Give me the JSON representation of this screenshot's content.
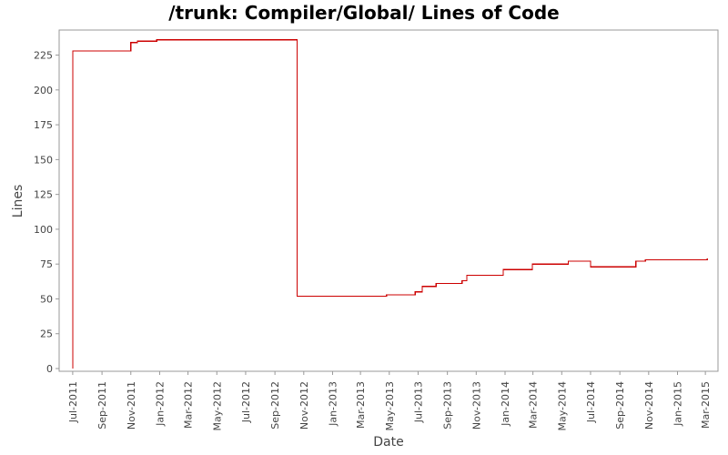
{
  "chart_data": {
    "type": "line",
    "step": true,
    "title": "/trunk: Compiler/Global/ Lines of Code",
    "xlabel": "Date",
    "ylabel": "Lines",
    "xlim": [
      "2011-06-10",
      "2015-03-20"
    ],
    "ylim": [
      0,
      243
    ],
    "yticks": [
      0,
      25,
      50,
      75,
      100,
      125,
      150,
      175,
      200,
      225
    ],
    "xticks": [
      {
        "label": "Jul-2011",
        "date": "2011-07-01"
      },
      {
        "label": "Sep-2011",
        "date": "2011-09-01"
      },
      {
        "label": "Nov-2011",
        "date": "2011-11-01"
      },
      {
        "label": "Jan-2012",
        "date": "2012-01-01"
      },
      {
        "label": "Mar-2012",
        "date": "2012-03-01"
      },
      {
        "label": "May-2012",
        "date": "2012-05-01"
      },
      {
        "label": "Jul-2012",
        "date": "2012-07-01"
      },
      {
        "label": "Sep-2012",
        "date": "2012-09-01"
      },
      {
        "label": "Nov-2012",
        "date": "2012-11-01"
      },
      {
        "label": "Jan-2013",
        "date": "2013-01-01"
      },
      {
        "label": "Mar-2013",
        "date": "2013-03-01"
      },
      {
        "label": "May-2013",
        "date": "2013-05-01"
      },
      {
        "label": "Jul-2013",
        "date": "2013-07-01"
      },
      {
        "label": "Sep-2013",
        "date": "2013-09-01"
      },
      {
        "label": "Nov-2013",
        "date": "2013-11-01"
      },
      {
        "label": "Jan-2014",
        "date": "2014-01-01"
      },
      {
        "label": "Mar-2014",
        "date": "2014-03-01"
      },
      {
        "label": "May-2014",
        "date": "2014-05-01"
      },
      {
        "label": "Jul-2014",
        "date": "2014-07-01"
      },
      {
        "label": "Sep-2014",
        "date": "2014-09-01"
      },
      {
        "label": "Nov-2014",
        "date": "2014-11-01"
      },
      {
        "label": "Jan-2015",
        "date": "2015-01-01"
      },
      {
        "label": "Mar-2015",
        "date": "2015-03-01"
      }
    ],
    "grid": false,
    "legend": "none",
    "colors": {
      "series": "#cc0000",
      "frame": "#999999",
      "plot_background": "#ffffff"
    },
    "series": [
      {
        "points": [
          {
            "x": "2011-07-01",
            "y": 0
          },
          {
            "x": "2011-07-01",
            "y": 228
          },
          {
            "x": "2011-11-01",
            "y": 234
          },
          {
            "x": "2011-11-15",
            "y": 235
          },
          {
            "x": "2011-12-26",
            "y": 236
          },
          {
            "x": "2012-10-18",
            "y": 52
          },
          {
            "x": "2013-04-25",
            "y": 53
          },
          {
            "x": "2013-06-25",
            "y": 55
          },
          {
            "x": "2013-07-10",
            "y": 59
          },
          {
            "x": "2013-08-08",
            "y": 61
          },
          {
            "x": "2013-10-02",
            "y": 63
          },
          {
            "x": "2013-10-12",
            "y": 67
          },
          {
            "x": "2013-12-28",
            "y": 71
          },
          {
            "x": "2014-02-28",
            "y": 75
          },
          {
            "x": "2014-05-15",
            "y": 77
          },
          {
            "x": "2014-07-01",
            "y": 73
          },
          {
            "x": "2014-10-05",
            "y": 77
          },
          {
            "x": "2014-10-25",
            "y": 78
          },
          {
            "x": "2015-03-05",
            "y": 79
          }
        ]
      }
    ]
  }
}
